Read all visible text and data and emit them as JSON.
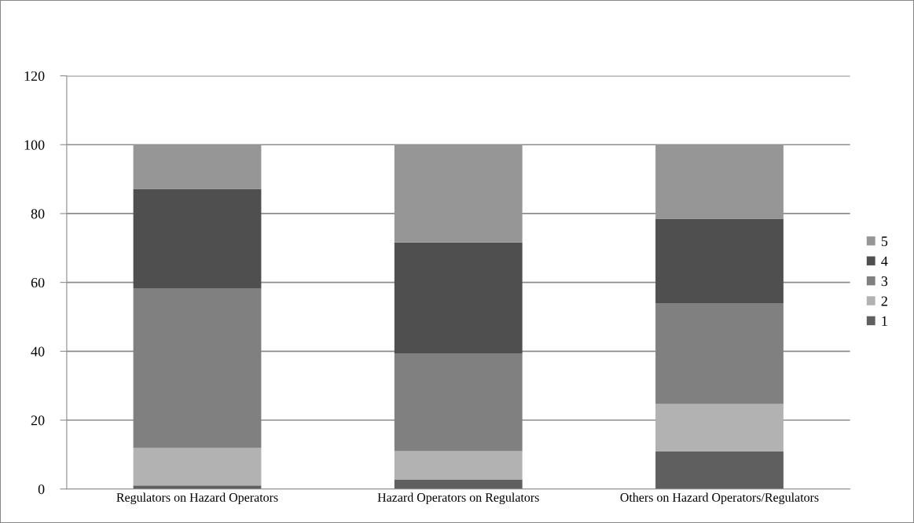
{
  "chart_data": {
    "type": "bar",
    "stacked": true,
    "categories": [
      "Regulators on Hazard Operators",
      "Hazard Operators on Regulators",
      "Others on Hazard Operators/Regulators"
    ],
    "series": [
      {
        "name": "1",
        "color": "#5f5f5f",
        "values": [
          1.0,
          2.8,
          10.9
        ]
      },
      {
        "name": "2",
        "color": "#b2b2b2",
        "values": [
          10.9,
          8.2,
          13.8
        ]
      },
      {
        "name": "3",
        "color": "#808080",
        "values": [
          46.4,
          28.3,
          29.3
        ]
      },
      {
        "name": "4",
        "color": "#4f4f4f",
        "values": [
          28.9,
          32.3,
          24.5
        ]
      },
      {
        "name": "5",
        "color": "#969696",
        "values": [
          12.8,
          28.4,
          21.5
        ]
      }
    ],
    "ylim": [
      0,
      120
    ],
    "yticks": [
      0,
      20,
      40,
      60,
      80,
      100,
      120
    ],
    "grid": "y",
    "legend": "right"
  }
}
